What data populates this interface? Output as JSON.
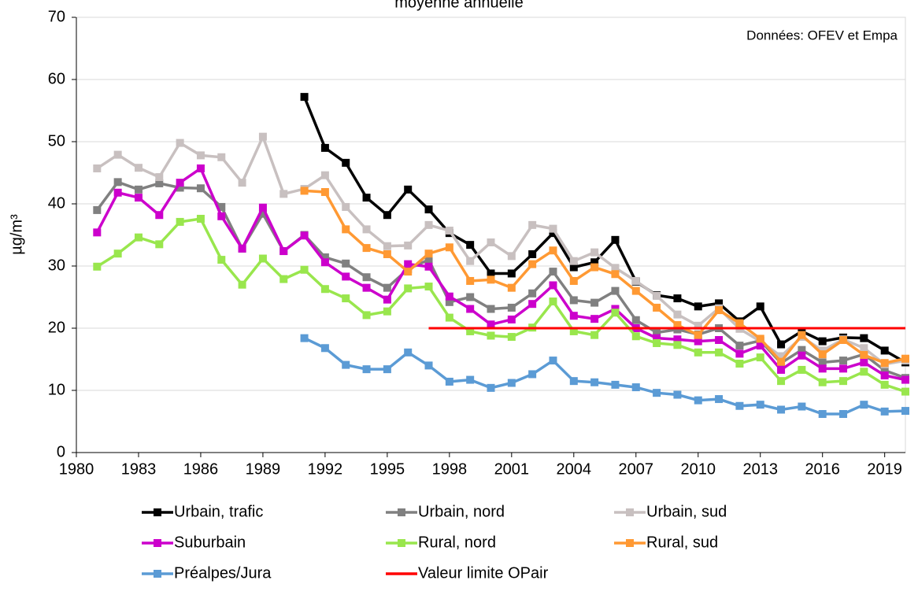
{
  "chart_data": {
    "type": "line",
    "title": "moyenne annuelle",
    "ylabel": "µg/m³",
    "annotation": "Données: OFEV et Empa",
    "x": [
      1981,
      1982,
      1983,
      1984,
      1985,
      1986,
      1987,
      1988,
      1989,
      1990,
      1991,
      1992,
      1993,
      1994,
      1995,
      1996,
      1997,
      1998,
      1999,
      2000,
      2001,
      2002,
      2003,
      2004,
      2005,
      2006,
      2007,
      2008,
      2009,
      2010,
      2011,
      2012,
      2013,
      2014,
      2015,
      2016,
      2017,
      2018,
      2019,
      2020
    ],
    "xlim": [
      1980,
      2020
    ],
    "xticks": [
      1980,
      1983,
      1986,
      1989,
      1992,
      1995,
      1998,
      2001,
      2004,
      2007,
      2010,
      2013,
      2016,
      2019
    ],
    "ylim": [
      0,
      70
    ],
    "yticks": [
      0,
      10,
      20,
      30,
      40,
      50,
      60,
      70
    ],
    "grid": true,
    "series": [
      {
        "name": "Urbain, trafic",
        "color": "#000000",
        "marker": "square",
        "values": [
          null,
          null,
          null,
          null,
          null,
          null,
          null,
          null,
          null,
          null,
          57.2,
          49,
          46.6,
          41,
          38.2,
          42.3,
          39.1,
          35.3,
          33.4,
          28.8,
          28.8,
          31.9,
          35.3,
          29.8,
          30.6,
          34.2,
          27.5,
          25.3,
          24.8,
          23.5,
          24,
          21.1,
          23.5,
          17.4,
          19.5,
          17.9,
          18.5,
          18.4,
          16.4,
          14.5
        ]
      },
      {
        "name": "Urbain, nord",
        "color": "#808080",
        "marker": "square",
        "values": [
          39,
          43.5,
          42.3,
          43.3,
          42.6,
          42.5,
          39.5,
          32.8,
          38.4,
          32.4,
          35,
          31.4,
          30.4,
          28.2,
          26.5,
          29.5,
          31,
          24.2,
          25,
          23.1,
          23.3,
          25.6,
          29.1,
          24.5,
          24.1,
          26,
          21.3,
          19.3,
          19.8,
          19,
          20,
          17.2,
          18,
          14.4,
          16.5,
          14.5,
          14.8,
          15.8,
          13.2,
          12
        ]
      },
      {
        "name": "Urbain, sud",
        "color": "#c8c0c0",
        "marker": "square",
        "values": [
          45.7,
          47.9,
          45.8,
          44.3,
          49.8,
          47.8,
          47.5,
          43.4,
          50.8,
          41.6,
          42.4,
          44.6,
          39.5,
          35.9,
          33.2,
          33.3,
          36.6,
          35.7,
          30.8,
          33.8,
          31.6,
          36.6,
          36,
          30.8,
          32.2,
          29.7,
          27.6,
          25.2,
          22.2,
          20.4,
          23.2,
          19.9,
          17.9,
          15.5,
          18.6,
          16.4,
          18.2,
          16.8,
          14.2,
          14.8
        ]
      },
      {
        "name": "Suburbain",
        "color": "#cc00cc",
        "marker": "square",
        "values": [
          35.4,
          41.8,
          41,
          38.2,
          43.4,
          45.7,
          38,
          32.8,
          39.4,
          32.4,
          34.9,
          30.6,
          28.3,
          26.5,
          24.6,
          30.3,
          29.9,
          25.1,
          23.1,
          20.6,
          21.4,
          23.9,
          26.9,
          22,
          21.5,
          23.1,
          20,
          18.4,
          18.2,
          17.9,
          18.1,
          15.9,
          17.2,
          13.3,
          15.6,
          13.5,
          13.5,
          14.5,
          12.4,
          11.7
        ]
      },
      {
        "name": "Rural, nord",
        "color": "#99e64d",
        "marker": "square",
        "values": [
          29.9,
          32,
          34.6,
          33.5,
          37.1,
          37.6,
          31,
          27,
          31.2,
          27.9,
          29.4,
          26.3,
          24.8,
          22.1,
          22.7,
          26.4,
          26.7,
          21.7,
          19.5,
          18.8,
          18.6,
          20.1,
          24.3,
          19.5,
          18.9,
          22.5,
          18.7,
          17.6,
          17.3,
          16.1,
          16.1,
          14.3,
          15.3,
          11.5,
          13.3,
          11.3,
          11.5,
          13,
          10.9,
          9.8
        ]
      },
      {
        "name": "Rural, sud",
        "color": "#ff9933",
        "marker": "square",
        "values": [
          null,
          null,
          null,
          null,
          null,
          null,
          null,
          null,
          null,
          null,
          42.1,
          41.9,
          35.9,
          32.9,
          31.9,
          29.1,
          32,
          33,
          27.6,
          27.8,
          26.5,
          30.3,
          32.5,
          27.6,
          29.8,
          28.7,
          26,
          23.3,
          20.5,
          18.9,
          22.9,
          20.8,
          18.3,
          14.6,
          18.9,
          15.8,
          18.1,
          15.7,
          14.4,
          15.1
        ]
      },
      {
        "name": "Préalpes/Jura",
        "color": "#5b9bd5",
        "marker": "square",
        "values": [
          null,
          null,
          null,
          null,
          null,
          null,
          null,
          null,
          null,
          null,
          18.4,
          16.8,
          14.1,
          13.4,
          13.4,
          16.1,
          14,
          11.4,
          11.7,
          10.4,
          11.2,
          12.6,
          14.8,
          11.5,
          11.3,
          10.9,
          10.5,
          9.6,
          9.3,
          8.4,
          8.6,
          7.5,
          7.7,
          6.9,
          7.4,
          6.2,
          6.2,
          7.7,
          6.6,
          6.7
        ]
      },
      {
        "name": "Valeur limite OPair",
        "color": "#ff0000",
        "marker": "none",
        "values": [
          null,
          null,
          null,
          null,
          null,
          null,
          null,
          null,
          null,
          null,
          null,
          null,
          null,
          null,
          null,
          null,
          20,
          20,
          20,
          20,
          20,
          20,
          20,
          20,
          20,
          20,
          20,
          20,
          20,
          20,
          20,
          20,
          20,
          20,
          20,
          20,
          20,
          20,
          20,
          20
        ]
      }
    ]
  }
}
